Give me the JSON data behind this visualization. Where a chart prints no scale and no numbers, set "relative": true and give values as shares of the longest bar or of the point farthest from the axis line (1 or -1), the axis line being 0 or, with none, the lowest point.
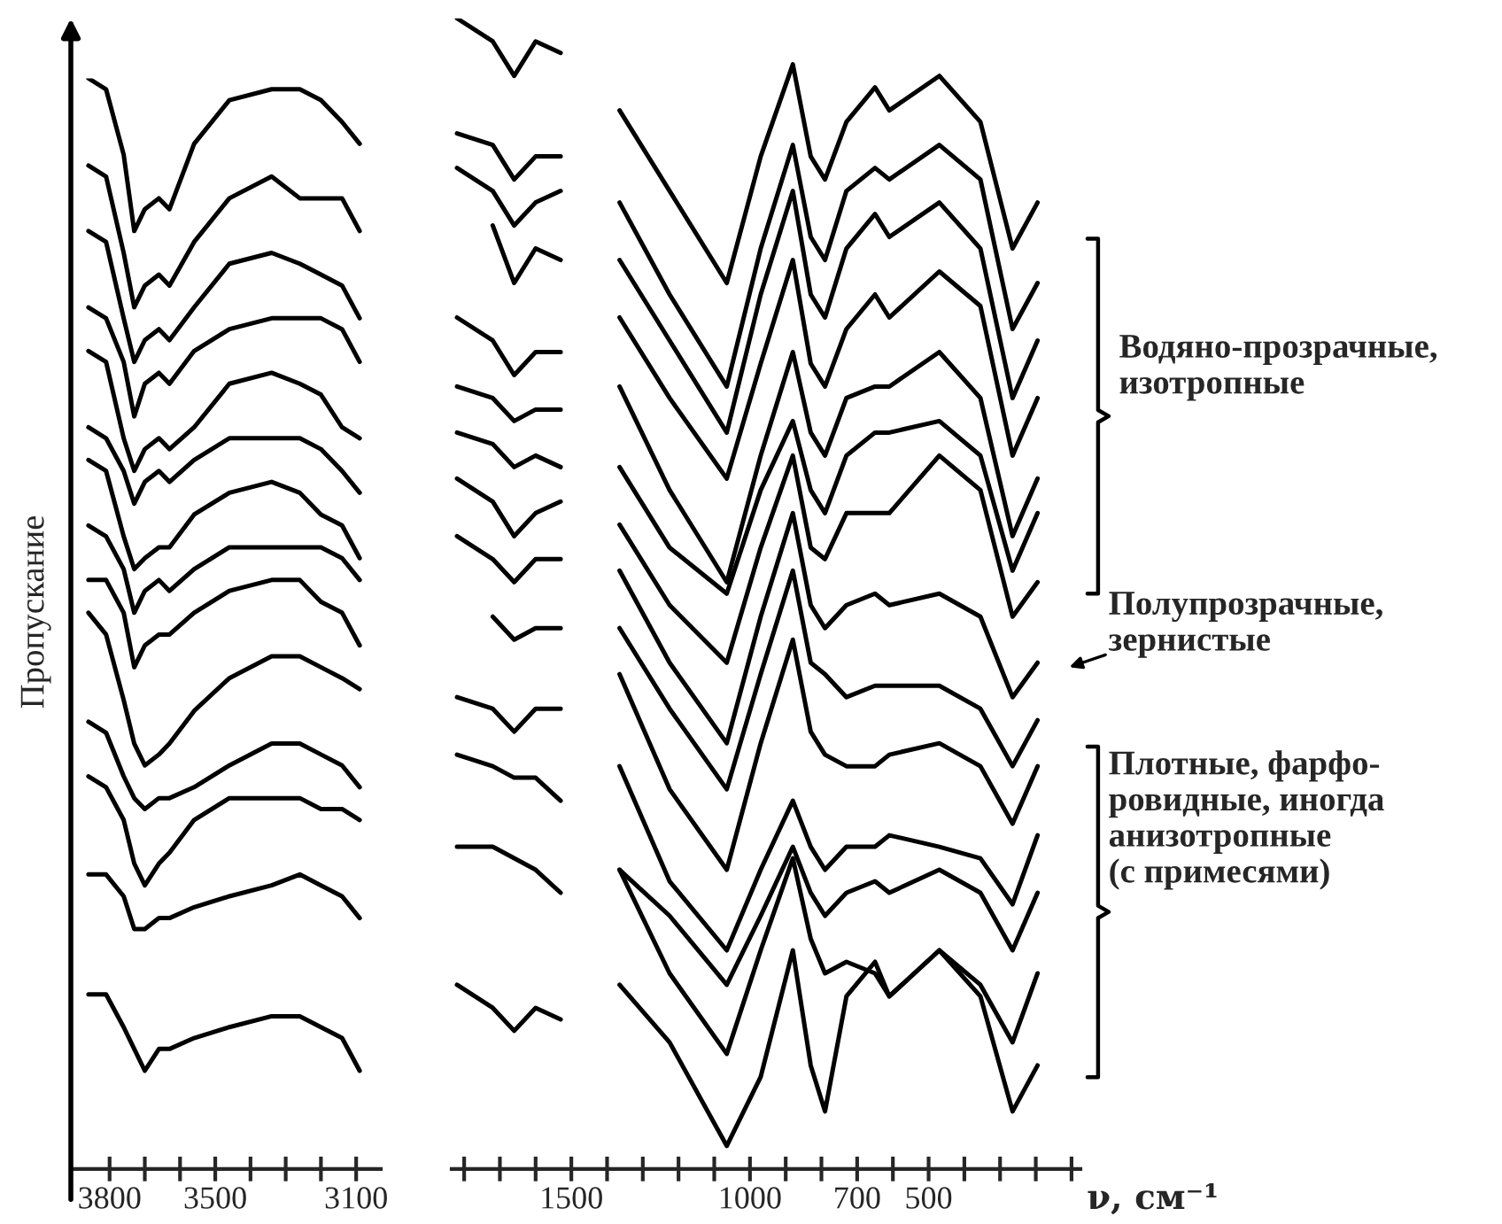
{
  "chart_data": [
    {
      "type": "line",
      "relative": true,
      "ylabel": "Пропускание",
      "x": [
        3860,
        3810,
        3760,
        3730,
        3700,
        3660,
        3630,
        3560,
        3460,
        3340,
        3260,
        3200,
        3140,
        3090
      ],
      "xlim": [
        3910,
        3030
      ],
      "xticks": [
        3800,
        {
          "value": 3700,
          "label": null
        },
        {
          "value": 3600,
          "label": null
        },
        3500,
        {
          "value": 3400,
          "label": null
        },
        {
          "value": 3300,
          "label": null
        },
        {
          "value": 3200,
          "label": null
        },
        3100
      ],
      "tick_labels": "x",
      "series": [
        {
          "color": "#000000",
          "values": [
            1.0,
            0.99,
            0.93,
            0.86,
            0.88,
            0.89,
            0.88,
            0.94,
            0.98,
            0.99,
            0.99,
            0.98,
            0.96,
            0.94
          ]
        },
        {
          "color": "#000000",
          "values": [
            0.92,
            0.91,
            0.84,
            0.79,
            0.81,
            0.82,
            0.81,
            0.85,
            0.89,
            0.91,
            0.89,
            0.89,
            0.89,
            0.86
          ]
        },
        {
          "color": "#000000",
          "values": [
            0.86,
            0.85,
            0.78,
            0.74,
            0.76,
            0.77,
            0.76,
            0.79,
            0.83,
            0.84,
            0.83,
            0.82,
            0.81,
            0.78
          ]
        },
        {
          "color": "#000000",
          "values": [
            0.79,
            0.78,
            0.74,
            0.69,
            0.72,
            0.73,
            0.72,
            0.75,
            0.77,
            0.78,
            0.78,
            0.78,
            0.77,
            0.74
          ]
        },
        {
          "color": "#000000",
          "values": [
            0.75,
            0.74,
            0.67,
            0.64,
            0.66,
            0.67,
            0.66,
            0.68,
            0.72,
            0.73,
            0.72,
            0.71,
            0.68,
            0.67
          ]
        },
        {
          "color": "#000000",
          "values": [
            0.68,
            0.67,
            0.64,
            0.61,
            0.63,
            0.64,
            0.63,
            0.65,
            0.67,
            0.67,
            0.67,
            0.66,
            0.64,
            0.62
          ]
        },
        {
          "color": "#000000",
          "values": [
            0.65,
            0.64,
            0.58,
            0.55,
            0.56,
            0.57,
            0.57,
            0.6,
            0.62,
            0.63,
            0.62,
            0.6,
            0.59,
            0.56
          ]
        },
        {
          "color": "#000000",
          "values": [
            0.59,
            0.58,
            0.55,
            0.51,
            0.53,
            0.54,
            0.53,
            0.55,
            0.57,
            0.57,
            0.57,
            0.57,
            0.56,
            0.54
          ]
        },
        {
          "color": "#000000",
          "values": [
            0.54,
            0.54,
            0.51,
            0.46,
            0.48,
            0.49,
            0.49,
            0.51,
            0.53,
            0.54,
            0.54,
            0.52,
            0.51,
            0.48
          ]
        },
        {
          "color": "#000000",
          "values": [
            0.51,
            0.49,
            0.43,
            0.39,
            0.37,
            0.38,
            0.39,
            0.42,
            0.45,
            0.47,
            0.47,
            0.46,
            0.45,
            0.44
          ]
        },
        {
          "color": "#000000",
          "values": [
            0.41,
            0.4,
            0.36,
            0.34,
            0.33,
            0.34,
            0.34,
            0.35,
            0.37,
            0.39,
            0.39,
            0.38,
            0.37,
            0.35
          ]
        },
        {
          "color": "#000000",
          "values": [
            0.36,
            0.35,
            0.32,
            0.28,
            0.26,
            0.28,
            0.29,
            0.32,
            0.34,
            0.34,
            0.34,
            0.33,
            0.33,
            0.32
          ]
        },
        {
          "color": "#000000",
          "values": [
            0.27,
            0.27,
            0.25,
            0.22,
            0.22,
            0.23,
            0.23,
            0.24,
            0.25,
            0.26,
            0.27,
            0.26,
            0.25,
            0.23
          ]
        },
        {
          "color": "#000000",
          "values": [
            0.16,
            0.16,
            0.13,
            0.11,
            0.09,
            0.11,
            0.11,
            0.12,
            0.13,
            0.14,
            0.14,
            0.13,
            0.12,
            0.09
          ]
        }
      ]
    },
    {
      "type": "line",
      "relative": true,
      "xlabel": "ν, см⁻¹",
      "x": [
        1820,
        1720,
        1660,
        1600,
        1530,
        1450,
        1365,
        1225,
        1065,
        970,
        880,
        830,
        790,
        730,
        650,
        610,
        470,
        355,
        265,
        195
      ],
      "xlim": [
        1835,
        75
      ],
      "xticks": [
        {
          "value": 1800,
          "label": null
        },
        {
          "value": 1700,
          "label": null
        },
        {
          "value": 1600,
          "label": null
        },
        1500,
        {
          "value": 1400,
          "label": null
        },
        {
          "value": 1300,
          "label": null
        },
        {
          "value": 1200,
          "label": null
        },
        {
          "value": 1100,
          "label": null
        },
        1000,
        {
          "value": 900,
          "label": null
        },
        {
          "value": 800,
          "label": null
        },
        700,
        {
          "value": 600,
          "label": null
        },
        500,
        {
          "value": 400,
          "label": null
        },
        {
          "value": 300,
          "label": null
        },
        {
          "value": 200,
          "label": null
        },
        {
          "value": 100,
          "label": null
        }
      ],
      "tick_labels": "x",
      "annotations": [
        "Водяно-прозрачные,\nизотропные",
        "Полупрозрачные,\nзернистые",
        "Плотные, фарфо-\nровидные, иногда\nанизотропные\n(с примесями)"
      ],
      "series": [
        {
          "color": "#000000",
          "values": [
            1.0,
            0.98,
            0.95,
            0.98,
            0.97,
            null,
            0.92,
            0.85,
            0.77,
            0.88,
            0.96,
            0.88,
            0.86,
            0.91,
            0.94,
            0.92,
            0.95,
            0.91,
            0.8,
            0.84
          ]
        },
        {
          "color": "#000000",
          "values": [
            0.9,
            0.89,
            0.86,
            0.88,
            0.88,
            null,
            0.84,
            0.76,
            0.68,
            0.8,
            0.89,
            0.81,
            0.79,
            0.85,
            0.87,
            0.86,
            0.89,
            0.86,
            0.73,
            0.77
          ]
        },
        {
          "color": "#000000",
          "values": [
            0.87,
            0.85,
            0.82,
            0.84,
            0.85,
            null,
            0.79,
            0.72,
            0.64,
            0.76,
            0.85,
            0.76,
            0.74,
            0.8,
            0.83,
            0.81,
            0.84,
            0.8,
            0.67,
            0.72
          ]
        },
        {
          "color": "#000000",
          "values": [
            null,
            0.82,
            0.77,
            0.8,
            0.79,
            null,
            0.74,
            0.67,
            0.6,
            0.7,
            0.79,
            0.7,
            0.68,
            0.73,
            0.76,
            0.74,
            0.78,
            0.75,
            0.62,
            0.67
          ]
        },
        {
          "color": "#000000",
          "values": [
            0.74,
            0.72,
            0.69,
            0.71,
            0.71,
            null,
            0.68,
            0.59,
            0.51,
            0.62,
            0.71,
            0.64,
            0.62,
            0.67,
            0.68,
            0.68,
            0.71,
            0.67,
            0.55,
            0.6
          ]
        },
        {
          "color": "#000000",
          "values": [
            0.68,
            0.67,
            0.65,
            0.66,
            0.66,
            null,
            0.61,
            0.54,
            0.5,
            0.59,
            0.65,
            0.59,
            0.57,
            0.62,
            0.64,
            0.64,
            0.65,
            0.62,
            0.52,
            0.57
          ]
        },
        {
          "color": "#000000",
          "values": [
            0.64,
            0.63,
            0.61,
            0.62,
            0.61,
            null,
            0.56,
            0.49,
            0.44,
            0.54,
            0.62,
            0.54,
            0.53,
            0.57,
            0.57,
            0.57,
            0.62,
            0.59,
            0.48,
            0.51
          ]
        },
        {
          "color": "#000000",
          "values": [
            0.6,
            0.58,
            0.55,
            0.57,
            0.58,
            null,
            0.52,
            0.44,
            0.37,
            0.48,
            0.57,
            0.49,
            0.47,
            0.49,
            0.5,
            0.49,
            0.5,
            0.48,
            0.41,
            0.44
          ]
        },
        {
          "color": "#000000",
          "values": [
            0.55,
            0.53,
            0.51,
            0.53,
            0.53,
            null,
            0.47,
            0.4,
            0.33,
            0.43,
            0.52,
            0.44,
            0.43,
            0.41,
            0.42,
            0.42,
            0.42,
            0.4,
            0.35,
            0.39
          ]
        },
        {
          "color": "#000000",
          "values": [
            null,
            0.48,
            0.46,
            0.47,
            0.47,
            null,
            0.43,
            0.33,
            0.26,
            0.37,
            0.46,
            0.38,
            0.36,
            0.35,
            0.35,
            0.36,
            0.37,
            0.35,
            0.3,
            0.35
          ]
        },
        {
          "color": "#000000",
          "values": [
            0.41,
            0.4,
            0.38,
            0.4,
            0.4,
            null,
            0.35,
            0.25,
            0.19,
            0.26,
            0.32,
            0.28,
            0.26,
            0.28,
            0.28,
            0.29,
            0.28,
            0.27,
            0.23,
            0.29
          ]
        },
        {
          "color": "#000000",
          "values": [
            0.36,
            0.35,
            0.34,
            0.34,
            0.32,
            null,
            0.26,
            0.22,
            0.16,
            0.22,
            0.28,
            0.24,
            0.22,
            0.24,
            0.25,
            0.24,
            0.26,
            0.24,
            0.19,
            0.24
          ]
        },
        {
          "color": "#000000",
          "values": [
            0.28,
            0.28,
            0.27,
            0.26,
            0.24,
            null,
            0.26,
            0.17,
            0.1,
            0.19,
            0.27,
            0.2,
            0.17,
            0.18,
            0.17,
            0.15,
            0.19,
            0.16,
            0.11,
            0.17
          ]
        },
        {
          "color": "#000000",
          "values": [
            0.16,
            0.14,
            0.12,
            0.14,
            0.13,
            null,
            0.16,
            0.11,
            0.02,
            0.08,
            0.19,
            0.09,
            0.05,
            0.15,
            0.18,
            0.15,
            0.19,
            0.15,
            0.05,
            0.09
          ]
        }
      ]
    }
  ]
}
